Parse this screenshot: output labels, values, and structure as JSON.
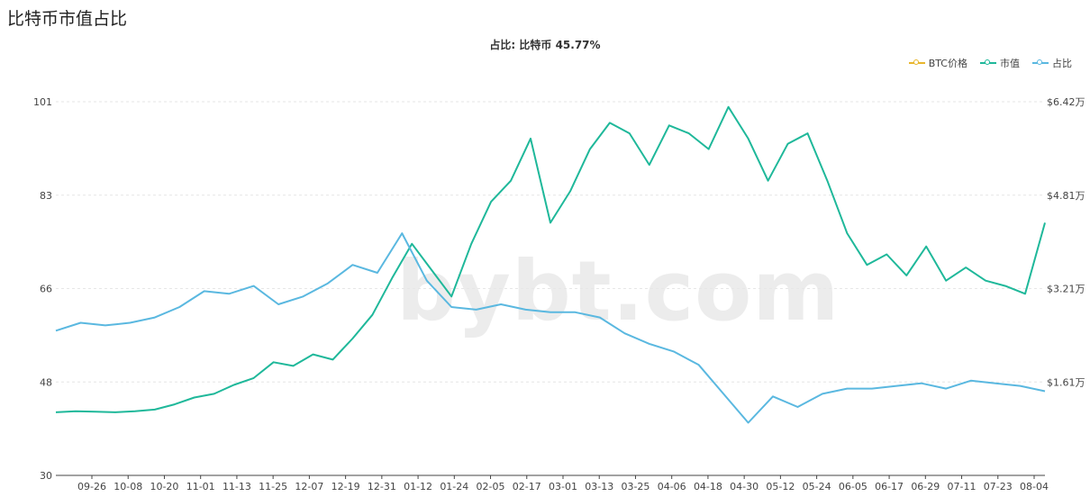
{
  "page": {
    "heading": "比特币市值占比"
  },
  "colors": {
    "price": "#e8b62c",
    "market_cap": "#1fb89a",
    "dominance": "#5ab8e0",
    "grid": "#e6e6e6"
  },
  "chart_data": {
    "type": "line",
    "title": "占比: 比特币 45.77%",
    "watermark": "bybt.com",
    "legend": [
      {
        "name": "BTC价格",
        "color": "#e8b62c"
      },
      {
        "name": "市值",
        "color": "#1fb89a"
      },
      {
        "name": "占比",
        "color": "#5ab8e0"
      }
    ],
    "legend_position": "top-right",
    "grid": true,
    "y_left": {
      "ticks": [
        "101",
        "83",
        "66",
        "48",
        "30"
      ],
      "ylim": [
        30,
        101
      ]
    },
    "y_right": {
      "ticks": [
        "$6.42万",
        "$4.81万",
        "$3.21万",
        "$1.61万"
      ]
    },
    "x_ticks": [
      "09-26",
      "10-08",
      "10-20",
      "11-01",
      "11-13",
      "11-25",
      "12-07",
      "12-19",
      "12-31",
      "01-12",
      "01-24",
      "02-05",
      "02-17",
      "03-01",
      "03-13",
      "03-25",
      "04-06",
      "04-18",
      "04-30",
      "05-12",
      "05-24",
      "06-05",
      "06-17",
      "06-29",
      "07-11",
      "07-23",
      "08-04"
    ],
    "x_start_date": "09-17",
    "series": [
      {
        "name": "市值",
        "y_axis": "left",
        "values": [
          42.0,
          42.2,
          42.1,
          42.0,
          42.2,
          42.5,
          43.5,
          44.8,
          45.5,
          47.2,
          48.5,
          51.5,
          50.8,
          53.0,
          52.0,
          56.0,
          60.5,
          67.5,
          74.0,
          69.0,
          64.0,
          74.0,
          82.0,
          86.0,
          94.0,
          78.0,
          84.0,
          92.0,
          97.0,
          95.0,
          89.0,
          96.5,
          95.0,
          92.0,
          100.0,
          94.0,
          86.0,
          93.0,
          95.0,
          86.0,
          76.0,
          70.0,
          72.0,
          68.0,
          73.5,
          67.0,
          69.5,
          67.0,
          66.0,
          64.5,
          78.0
        ]
      },
      {
        "name": "占比",
        "y_axis": "left",
        "values": [
          57.5,
          59.0,
          58.5,
          59.0,
          60.0,
          62.0,
          65.0,
          64.5,
          66.0,
          62.5,
          64.0,
          66.5,
          70.0,
          68.5,
          76.0,
          67.0,
          62.0,
          61.5,
          62.5,
          61.5,
          61.0,
          61.0,
          60.0,
          57.0,
          55.0,
          53.5,
          51.0,
          45.5,
          40.0,
          45.0,
          43.0,
          45.5,
          46.5,
          46.5,
          47.0,
          47.5,
          46.5,
          48.0,
          47.5,
          47.0,
          46.0
        ]
      }
    ]
  }
}
